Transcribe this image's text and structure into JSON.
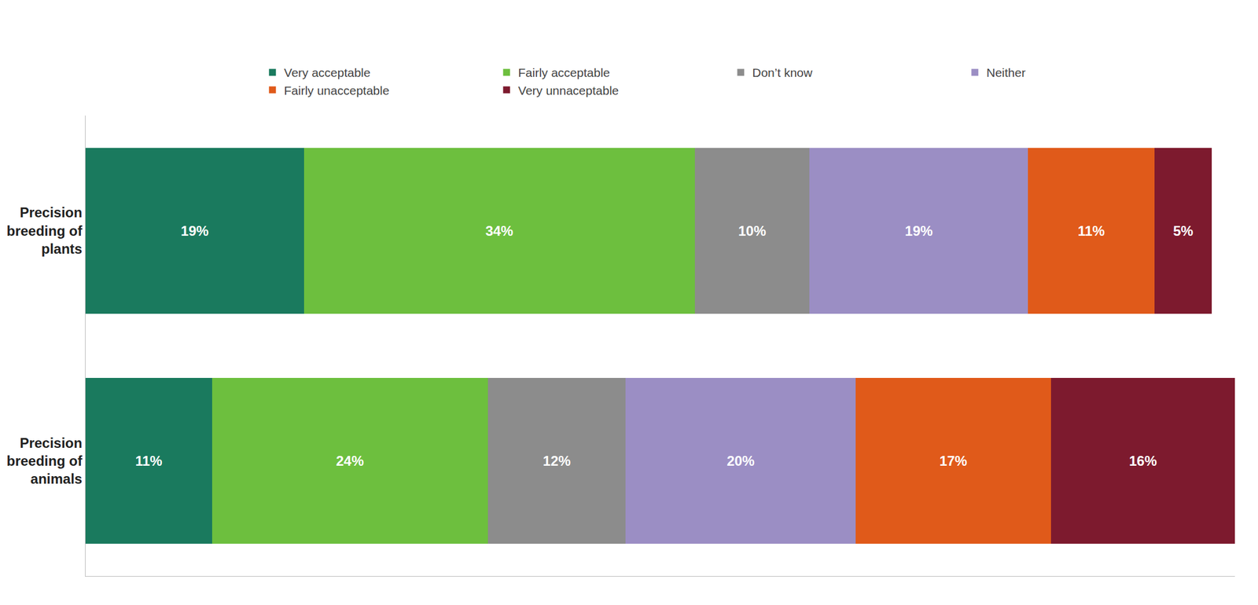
{
  "chart_data": {
    "type": "bar",
    "orientation": "horizontal",
    "stacked": true,
    "categories": [
      "Precision\nbreeding of\nplants",
      "Precision\nbreeding of\nanimals"
    ],
    "series": [
      {
        "name": "Very acceptable",
        "color": "#1a7a5e",
        "values": [
          19,
          11
        ],
        "value_labels": [
          "19%",
          "11%"
        ]
      },
      {
        "name": "Fairly acceptable",
        "color": "#6dbf3e",
        "values": [
          34,
          24
        ],
        "value_labels": [
          "34%",
          "24%"
        ]
      },
      {
        "name": "Don’t know",
        "color": "#8c8c8c",
        "values": [
          10,
          12
        ],
        "value_labels": [
          "10%",
          "12%"
        ]
      },
      {
        "name": "Neither",
        "color": "#9b8ec4",
        "values": [
          19,
          20
        ],
        "value_labels": [
          "19%",
          "20%"
        ]
      },
      {
        "name": "Fairly unacceptable",
        "color": "#e05a1a",
        "values": [
          11,
          17
        ],
        "value_labels": [
          "11%",
          "17%"
        ]
      },
      {
        "name": "Very unnaceptable",
        "color": "#7d1a2e",
        "values": [
          5,
          16
        ],
        "value_labels": [
          "5%",
          "16%"
        ]
      }
    ],
    "xlim": [
      0,
      100
    ],
    "grid": false,
    "legend": "top",
    "data_labels": true,
    "tick_labels": "y"
  }
}
